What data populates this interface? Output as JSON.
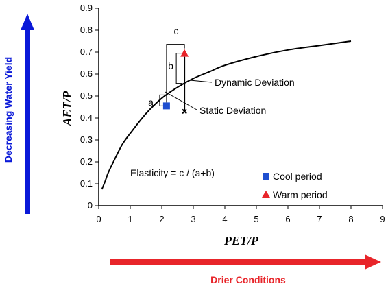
{
  "chart_data": {
    "type": "scatter",
    "title": "",
    "xlabel": "PET/P",
    "ylabel": "AET/P",
    "xlim": [
      0,
      9
    ],
    "ylim": [
      0,
      0.9
    ],
    "x_ticks": [
      "0",
      "1",
      "2",
      "3",
      "4",
      "5",
      "6",
      "7",
      "8",
      "9"
    ],
    "y_ticks": [
      "0",
      "0.1",
      "0.2",
      "0.3",
      "0.4",
      "0.5",
      "0.6",
      "0.7",
      "0.8",
      "0.9"
    ],
    "grid": false,
    "legend_position": "lower-right",
    "curve": {
      "x": [
        0.1,
        0.2,
        0.3,
        0.5,
        0.75,
        1.0,
        1.5,
        2.0,
        2.5,
        3.0,
        3.5,
        4.0,
        5.0,
        6.0,
        7.0,
        8.0
      ],
      "y": [
        0.075,
        0.11,
        0.15,
        0.21,
        0.28,
        0.33,
        0.42,
        0.49,
        0.54,
        0.58,
        0.61,
        0.64,
        0.68,
        0.71,
        0.73,
        0.75
      ]
    },
    "series": [
      {
        "name": "Cool period",
        "marker": "square",
        "color": "#1f4fd0",
        "x": [
          2.15
        ],
        "y": [
          0.455
        ]
      },
      {
        "name": "Warm period",
        "marker": "triangle",
        "color": "#e8252a",
        "x": [
          2.72
        ],
        "y": [
          0.695
        ]
      }
    ],
    "projected_point": {
      "x": 2.72,
      "y": 0.43
    },
    "annotations": {
      "a": "a",
      "b": "b",
      "c": "c",
      "dynamic": "Dynamic Deviation",
      "static": "Static Deviation",
      "elasticity": "Elasticity = c / (a+b)"
    }
  },
  "side_labels": {
    "left": "Decreasing Water Yield",
    "bottom": "Drier Conditions",
    "left_color": "#0a19d8",
    "bottom_color": "#e8252a"
  }
}
